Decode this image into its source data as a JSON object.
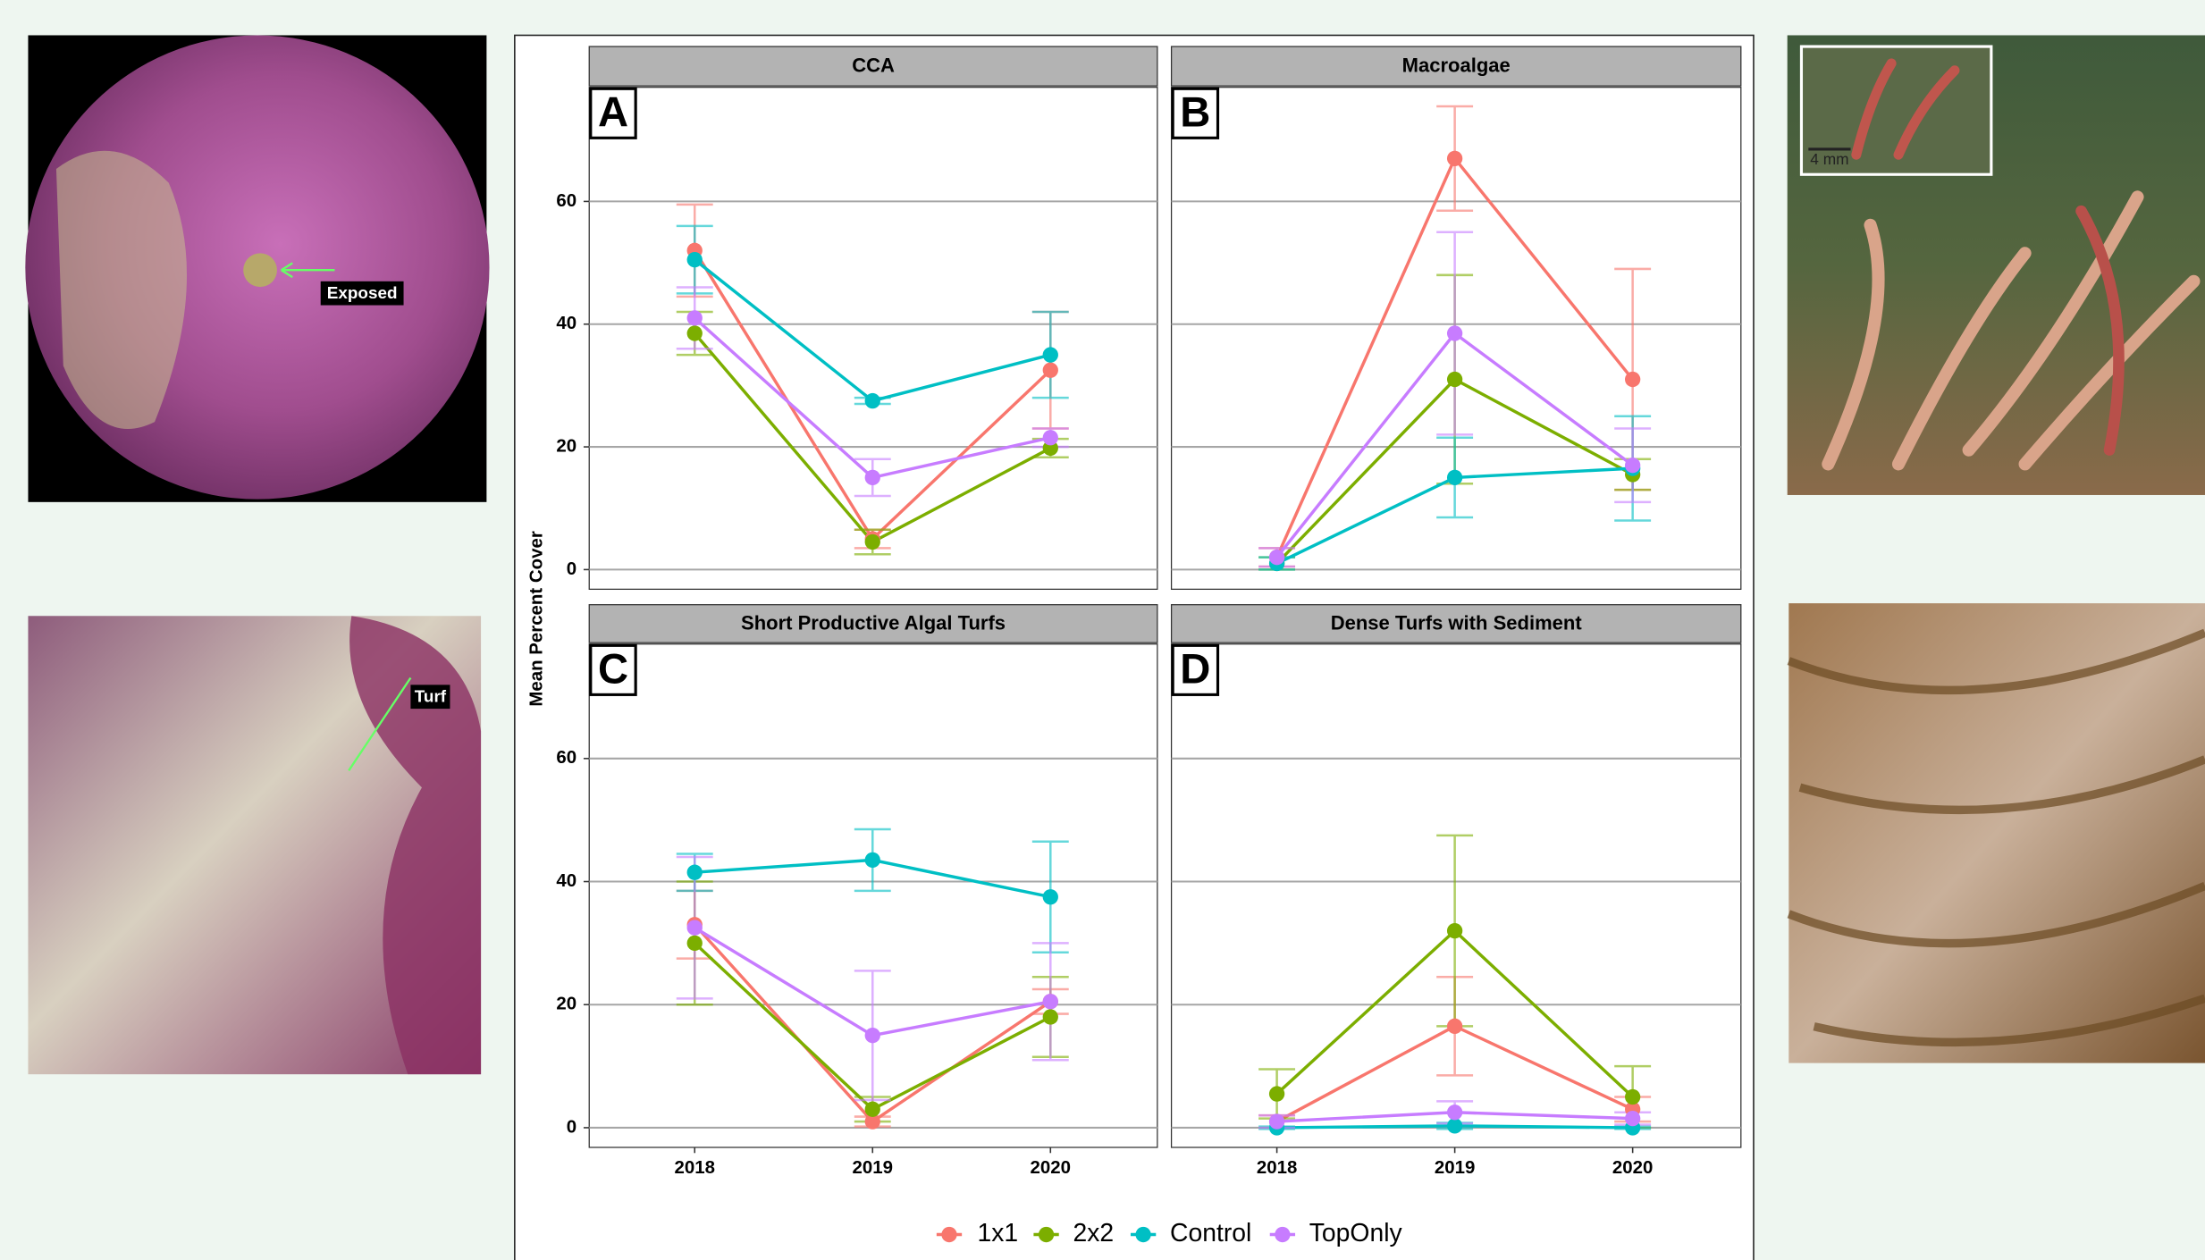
{
  "chart_data": {
    "type": "line",
    "ylabel": "Mean Percent Cover",
    "categories": [
      "2018",
      "2019",
      "2020"
    ],
    "ylim": [
      -3.2,
      78.6
    ],
    "yticks": [
      0,
      20,
      40,
      60
    ],
    "grid": true,
    "legend": "bottom",
    "series": [
      {
        "name": "1x1",
        "color": "#F8766D"
      },
      {
        "name": "2x2",
        "color": "#7CAE00"
      },
      {
        "name": "Control",
        "color": "#00BFC4"
      },
      {
        "name": "TopOnly",
        "color": "#C77CFF"
      }
    ],
    "panels": [
      {
        "title": "CCA",
        "tag": "A",
        "series": [
          {
            "values": [
              52,
              5,
              32.5
            ],
            "errors": [
              7.5,
              1.5,
              9.5
            ]
          },
          {
            "values": [
              38.5,
              4.5,
              19.8
            ],
            "errors": [
              3.5,
              2,
              1.5
            ]
          },
          {
            "values": [
              50.5,
              27.5,
              35
            ],
            "errors": [
              5.5,
              0.5,
              7
            ]
          },
          {
            "values": [
              41,
              15,
              21.5
            ],
            "errors": [
              5,
              3,
              1.5
            ]
          }
        ]
      },
      {
        "title": "Macroalgae",
        "tag": "B",
        "series": [
          {
            "values": [
              2,
              67,
              31
            ],
            "errors": [
              1.5,
              8.5,
              18
            ]
          },
          {
            "values": [
              1,
              31,
              15.5
            ],
            "errors": [
              1,
              17,
              2.5
            ]
          },
          {
            "values": [
              1,
              15,
              16.5
            ],
            "errors": [
              1,
              6.5,
              8.5
            ]
          },
          {
            "values": [
              2,
              38.5,
              17
            ],
            "errors": [
              1.5,
              16.5,
              6
            ]
          }
        ]
      },
      {
        "title": "Short Productive Algal Turfs",
        "tag": "C",
        "series": [
          {
            "values": [
              33,
              1,
              20.5
            ],
            "errors": [
              5.5,
              0.8,
              2
            ]
          },
          {
            "values": [
              30,
              3,
              18
            ],
            "errors": [
              10,
              2,
              6.5
            ]
          },
          {
            "values": [
              41.5,
              43.5,
              37.5
            ],
            "errors": [
              3,
              5,
              9
            ]
          },
          {
            "values": [
              32.5,
              15,
              20.5
            ],
            "errors": [
              11.5,
              10.5,
              9.5
            ]
          }
        ]
      },
      {
        "title": "Dense Turfs with Sediment",
        "tag": "D",
        "series": [
          {
            "values": [
              1,
              16.5,
              3
            ],
            "errors": [
              1,
              8,
              2
            ]
          },
          {
            "values": [
              5.5,
              32,
              5
            ],
            "errors": [
              4,
              15.5,
              5
            ]
          },
          {
            "values": [
              0,
              0.3,
              0
            ],
            "errors": [
              0.2,
              0.5,
              0.2
            ]
          },
          {
            "values": [
              1,
              2.5,
              1.5
            ],
            "errors": [
              1,
              1.8,
              1
            ]
          }
        ]
      }
    ]
  },
  "photos": {
    "exposed_label": "Exposed",
    "turf_label": "Turf",
    "scale_label": "4 mm"
  }
}
